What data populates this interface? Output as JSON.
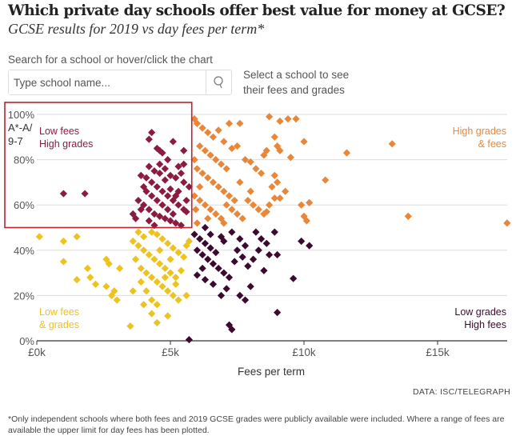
{
  "title": "Which private day schools offer best value for money at GCSE?",
  "subtitle": "GCSE results for 2019 vs day fees per term*",
  "search": {
    "label": "Search for a school or hover/click the chart",
    "placeholder": "Type school name...",
    "icon": "search-icon",
    "hint_line1": "Select a school to see",
    "hint_line2": "their fees and grades"
  },
  "credit": "DATA: ISC/TELEGRAPH",
  "footnote": "*Only independent schools where both fees and 2019 GCSE grades were publicly available were included. Where a range of fees are available the upper limit for day fees has been plotted.",
  "chart_data": {
    "type": "scatter",
    "xlabel": "Fees per term",
    "ylabel_lines": [
      "A*-A/",
      "9-7"
    ],
    "xlim": [
      0,
      17.6
    ],
    "ylim": [
      0,
      100
    ],
    "x_unit": "£ thousands",
    "x_ticks": [
      {
        "v": 0,
        "label": "£0k"
      },
      {
        "v": 5,
        "label": "£5k"
      },
      {
        "v": 10,
        "label": "£10k"
      },
      {
        "v": 15,
        "label": "£15k"
      }
    ],
    "y_ticks": [
      {
        "v": 100,
        "label": "100%"
      },
      {
        "v": 80,
        "label": "80%"
      },
      {
        "v": 60,
        "label": "60%"
      },
      {
        "v": 40,
        "label": "40%"
      },
      {
        "v": 20,
        "label": "20%"
      },
      {
        "v": 0,
        "label": "0%"
      }
    ],
    "grid": true,
    "marker": "diamond",
    "highlight_box": {
      "x": [
        0,
        5.8
      ],
      "y": [
        50,
        100
      ],
      "color": "#b8232f"
    },
    "annotations": [
      {
        "id": "low-fees-high-grades",
        "lines": [
          "Low fees",
          "High grades"
        ],
        "color": "#8b1c3f"
      },
      {
        "id": "high-grades-fees",
        "lines": [
          "High grades",
          "& fees"
        ],
        "color": "#e8873a"
      },
      {
        "id": "low-fees-grades",
        "lines": [
          "Low fees",
          "& grades"
        ],
        "color": "#eec21f"
      },
      {
        "id": "low-grades-high-fees",
        "lines": [
          "Low grades",
          "High fees"
        ],
        "color": "#3d0a2f"
      }
    ],
    "series": [
      {
        "color": "#8b1c3f",
        "points": [
          [
            4.3,
            92
          ],
          [
            4.2,
            89
          ],
          [
            4.5,
            85
          ],
          [
            4.6,
            84
          ],
          [
            4.7,
            83
          ],
          [
            5.1,
            88
          ],
          [
            5.5,
            84
          ],
          [
            4.2,
            77
          ],
          [
            4.4,
            75
          ],
          [
            4.6,
            74
          ],
          [
            4.8,
            71
          ],
          [
            5.0,
            73
          ],
          [
            5.3,
            77
          ],
          [
            5.5,
            78
          ],
          [
            3.9,
            73
          ],
          [
            4.1,
            72
          ],
          [
            4.3,
            70
          ],
          [
            4.5,
            68
          ],
          [
            4.7,
            66
          ],
          [
            4.9,
            64
          ],
          [
            5.1,
            62
          ],
          [
            5.3,
            60
          ],
          [
            5.5,
            58
          ],
          [
            3.8,
            62
          ],
          [
            4.0,
            60
          ],
          [
            4.2,
            58
          ],
          [
            4.4,
            56
          ],
          [
            4.6,
            55
          ],
          [
            4.8,
            54
          ],
          [
            5.0,
            53
          ],
          [
            5.2,
            52
          ],
          [
            5.4,
            51
          ],
          [
            5.6,
            57
          ],
          [
            3.6,
            56
          ],
          [
            3.7,
            54
          ],
          [
            4.1,
            66
          ],
          [
            4.3,
            64
          ],
          [
            4.5,
            62
          ],
          [
            4.7,
            60
          ],
          [
            4.9,
            58
          ],
          [
            5.1,
            56
          ],
          [
            5.3,
            66
          ],
          [
            5.5,
            70
          ],
          [
            5.7,
            68
          ],
          [
            5.2,
            72
          ],
          [
            4.0,
            68
          ],
          [
            4.6,
            78
          ],
          [
            4.9,
            80
          ],
          [
            5.4,
            74
          ],
          [
            5.6,
            62
          ],
          [
            4.2,
            53
          ],
          [
            4.4,
            51
          ],
          [
            3.9,
            58
          ],
          [
            5.0,
            67
          ],
          [
            5.2,
            64
          ],
          [
            4.8,
            76
          ],
          [
            1.0,
            65
          ],
          [
            1.8,
            65
          ]
        ]
      },
      {
        "color": "#e8873a",
        "points": [
          [
            5.9,
            98
          ],
          [
            6.0,
            96
          ],
          [
            6.2,
            94
          ],
          [
            6.4,
            92
          ],
          [
            6.6,
            90
          ],
          [
            6.8,
            93
          ],
          [
            7.0,
            88
          ],
          [
            7.2,
            96
          ],
          [
            7.6,
            96
          ],
          [
            7.3,
            85
          ],
          [
            6.1,
            86
          ],
          [
            6.3,
            84
          ],
          [
            6.5,
            82
          ],
          [
            6.7,
            80
          ],
          [
            6.9,
            78
          ],
          [
            7.1,
            76
          ],
          [
            5.9,
            80
          ],
          [
            6.0,
            76
          ],
          [
            6.2,
            74
          ],
          [
            6.4,
            72
          ],
          [
            6.6,
            70
          ],
          [
            6.8,
            68
          ],
          [
            7.0,
            66
          ],
          [
            7.2,
            64
          ],
          [
            7.4,
            62
          ],
          [
            5.9,
            64
          ],
          [
            6.1,
            62
          ],
          [
            6.3,
            60
          ],
          [
            6.5,
            58
          ],
          [
            6.7,
            56
          ],
          [
            6.9,
            54
          ],
          [
            7.1,
            60
          ],
          [
            7.3,
            58
          ],
          [
            7.5,
            56
          ],
          [
            7.7,
            54
          ],
          [
            7.9,
            62
          ],
          [
            8.1,
            60
          ],
          [
            8.3,
            58
          ],
          [
            8.5,
            56
          ],
          [
            7.6,
            70
          ],
          [
            7.8,
            80
          ],
          [
            8.0,
            79
          ],
          [
            8.5,
            82
          ],
          [
            8.2,
            76
          ],
          [
            8.4,
            74
          ],
          [
            8.7,
            99
          ],
          [
            9.1,
            97
          ],
          [
            9.4,
            98
          ],
          [
            9.7,
            98
          ],
          [
            8.9,
            90
          ],
          [
            9.0,
            86
          ],
          [
            8.6,
            84
          ],
          [
            9.1,
            84
          ],
          [
            9.5,
            81
          ],
          [
            10.0,
            88
          ],
          [
            10.8,
            71
          ],
          [
            11.6,
            83
          ],
          [
            13.3,
            87
          ],
          [
            13.9,
            55
          ],
          [
            17.6,
            52
          ],
          [
            8.9,
            73
          ],
          [
            9.0,
            70
          ],
          [
            8.8,
            68
          ],
          [
            9.3,
            66
          ],
          [
            8.9,
            63
          ],
          [
            9.1,
            63
          ],
          [
            8.7,
            60
          ],
          [
            8.6,
            57
          ],
          [
            9.9,
            60
          ],
          [
            10.2,
            61
          ],
          [
            10.0,
            55
          ],
          [
            10.1,
            53
          ],
          [
            6.0,
            52
          ],
          [
            6.4,
            54
          ],
          [
            7.0,
            52
          ],
          [
            8.0,
            66
          ],
          [
            7.5,
            86
          ],
          [
            6.1,
            68
          ],
          [
            5.95,
            58
          ]
        ]
      },
      {
        "color": "#3d0a2f",
        "points": [
          [
            5.9,
            47
          ],
          [
            6.1,
            45
          ],
          [
            6.3,
            43
          ],
          [
            6.5,
            41
          ],
          [
            6.7,
            39
          ],
          [
            6.0,
            40
          ],
          [
            6.2,
            38
          ],
          [
            6.4,
            36
          ],
          [
            6.6,
            34
          ],
          [
            6.8,
            32
          ],
          [
            7.0,
            30
          ],
          [
            7.2,
            28
          ],
          [
            6.0,
            29
          ],
          [
            6.3,
            27
          ],
          [
            6.6,
            25
          ],
          [
            6.9,
            20
          ],
          [
            7.3,
            48
          ],
          [
            7.6,
            45
          ],
          [
            7.8,
            42
          ],
          [
            7.5,
            40
          ],
          [
            7.7,
            37
          ],
          [
            7.4,
            35
          ],
          [
            7.9,
            33
          ],
          [
            8.2,
            48
          ],
          [
            8.4,
            45
          ],
          [
            8.6,
            43
          ],
          [
            8.7,
            38
          ],
          [
            8.1,
            36
          ],
          [
            8.5,
            31
          ],
          [
            8.0,
            24
          ],
          [
            7.6,
            20
          ],
          [
            7.8,
            18
          ],
          [
            7.2,
            7
          ],
          [
            7.3,
            5
          ],
          [
            9.0,
            12.5
          ],
          [
            9.6,
            27.5
          ],
          [
            9.0,
            38
          ],
          [
            10.2,
            42
          ],
          [
            9.9,
            44
          ],
          [
            5.7,
            0.5
          ],
          [
            6.5,
            47
          ],
          [
            7.0,
            44
          ],
          [
            6.9,
            46
          ],
          [
            8.9,
            48
          ],
          [
            6.2,
            32
          ],
          [
            7.1,
            23
          ],
          [
            6.3,
            50
          ],
          [
            8.3,
            40
          ]
        ]
      },
      {
        "color": "#eec21f",
        "points": [
          [
            0.1,
            46
          ],
          [
            1.0,
            44
          ],
          [
            1.5,
            46
          ],
          [
            1.0,
            35
          ],
          [
            1.9,
            32
          ],
          [
            2.6,
            36
          ],
          [
            2.7,
            34
          ],
          [
            3.1,
            32
          ],
          [
            1.5,
            27
          ],
          [
            2.2,
            25
          ],
          [
            2.6,
            24
          ],
          [
            2.0,
            28
          ],
          [
            2.8,
            20
          ],
          [
            2.9,
            22
          ],
          [
            3.0,
            18
          ],
          [
            3.5,
            6.5
          ],
          [
            3.6,
            44
          ],
          [
            3.8,
            42
          ],
          [
            4.0,
            40
          ],
          [
            4.2,
            38
          ],
          [
            4.4,
            36
          ],
          [
            4.6,
            34
          ],
          [
            4.8,
            32
          ],
          [
            5.0,
            30
          ],
          [
            5.2,
            28
          ],
          [
            3.8,
            48
          ],
          [
            4.0,
            46
          ],
          [
            4.3,
            48
          ],
          [
            4.5,
            47
          ],
          [
            4.7,
            45
          ],
          [
            4.9,
            43
          ],
          [
            5.1,
            41
          ],
          [
            5.3,
            39
          ],
          [
            5.5,
            37
          ],
          [
            5.7,
            44
          ],
          [
            3.9,
            32
          ],
          [
            4.1,
            30
          ],
          [
            4.3,
            28
          ],
          [
            4.5,
            26
          ],
          [
            4.7,
            24
          ],
          [
            4.9,
            22
          ],
          [
            5.1,
            20
          ],
          [
            5.3,
            18
          ],
          [
            3.7,
            36
          ],
          [
            3.9,
            26
          ],
          [
            4.1,
            22
          ],
          [
            4.3,
            18
          ],
          [
            4.5,
            16
          ],
          [
            4.3,
            12
          ],
          [
            4.5,
            8
          ],
          [
            4.9,
            11
          ],
          [
            5.6,
            20
          ],
          [
            5.4,
            31
          ],
          [
            5.6,
            42
          ],
          [
            5.0,
            36
          ],
          [
            4.6,
            40
          ],
          [
            3.6,
            22
          ],
          [
            4.0,
            16
          ],
          [
            5.2,
            25
          ],
          [
            4.8,
            28
          ]
        ]
      }
    ]
  }
}
